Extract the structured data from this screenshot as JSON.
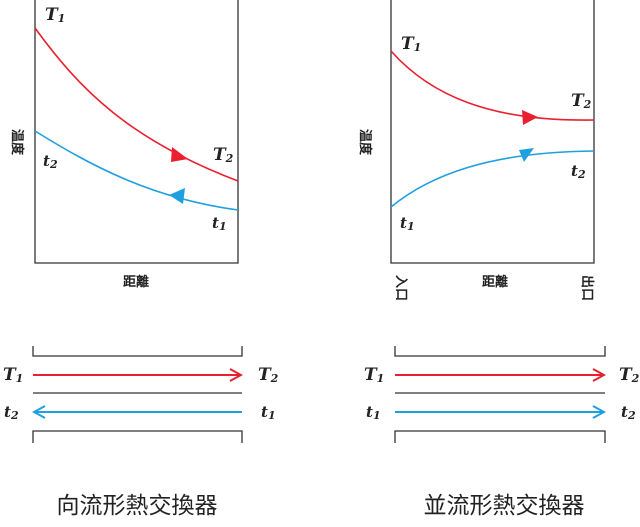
{
  "colors": {
    "hot": "#e8202f",
    "cold": "#1e9fe0",
    "ink": "#222222"
  },
  "axis_labels": {
    "temperature": "温度",
    "distance": "距離",
    "inlet": "入口",
    "outlet": "出口"
  },
  "var_labels": {
    "T1": {
      "base": "T",
      "sub": "1"
    },
    "T2": {
      "base": "T",
      "sub": "2"
    },
    "t1": {
      "base": "t",
      "sub": "1"
    },
    "t2": {
      "base": "t",
      "sub": "2"
    }
  },
  "captions": {
    "counterflow": "向流形熱交換器",
    "parallelflow": "並流形熱交換器"
  }
}
